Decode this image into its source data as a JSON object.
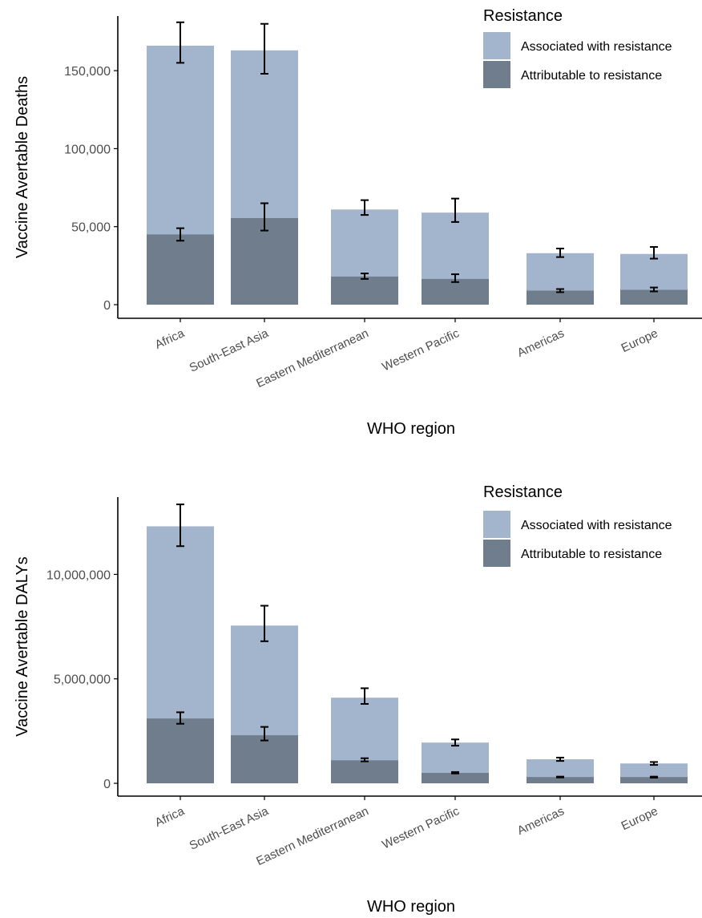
{
  "chart_data": [
    {
      "type": "bar",
      "xlabel": "WHO region",
      "ylabel": "Vaccine Avertable Deaths",
      "categories": [
        "Africa",
        "South-East Asia",
        "Eastern Mediterranean",
        "Western Pacific",
        "Americas",
        "Europe"
      ],
      "ylim": [
        0,
        185000
      ],
      "yticks": [
        0,
        50000,
        100000,
        150000
      ],
      "ytick_labels": [
        "0",
        "50,000",
        "100,000",
        "150,000"
      ],
      "legend": {
        "title": "Resistance",
        "position": "top-right"
      },
      "series": [
        {
          "name": "Associated with resistance",
          "color": "#a3b4cd",
          "values": [
            166000,
            163000,
            61000,
            59000,
            33000,
            32500
          ],
          "lower": [
            155000,
            148000,
            57500,
            53000,
            30500,
            29500
          ],
          "upper": [
            181000,
            180000,
            67000,
            68000,
            36000,
            37000
          ]
        },
        {
          "name": "Attributable to resistance",
          "color": "#707d8c",
          "values": [
            45000,
            55500,
            18000,
            16500,
            9000,
            9500
          ],
          "lower": [
            41000,
            47500,
            16500,
            14500,
            8000,
            8500
          ],
          "upper": [
            49000,
            65000,
            20000,
            19500,
            10000,
            11000
          ]
        }
      ]
    },
    {
      "type": "bar",
      "xlabel": "WHO region",
      "ylabel": "Vaccine Avertable DALYs",
      "categories": [
        "Africa",
        "South-East Asia",
        "Eastern Mediterranean",
        "Western Pacific",
        "Americas",
        "Europe"
      ],
      "ylim": [
        0,
        13700000
      ],
      "yticks": [
        0,
        5000000,
        10000000
      ],
      "ytick_labels": [
        "0",
        "5,000,000",
        "10,000,000"
      ],
      "legend": {
        "title": "Resistance",
        "position": "top-right"
      },
      "series": [
        {
          "name": "Associated with resistance",
          "color": "#a3b4cd",
          "values": [
            12300000,
            7550000,
            4100000,
            1950000,
            1150000,
            950000
          ],
          "lower": [
            11350000,
            6800000,
            3800000,
            1800000,
            1070000,
            880000
          ],
          "upper": [
            13350000,
            8500000,
            4550000,
            2100000,
            1230000,
            1020000
          ]
        },
        {
          "name": "Attributable to resistance",
          "color": "#707d8c",
          "values": [
            3100000,
            2300000,
            1100000,
            500000,
            300000,
            300000
          ],
          "lower": [
            2850000,
            2050000,
            1050000,
            470000,
            280000,
            270000
          ],
          "upper": [
            3400000,
            2700000,
            1200000,
            540000,
            320000,
            320000
          ]
        }
      ]
    }
  ]
}
